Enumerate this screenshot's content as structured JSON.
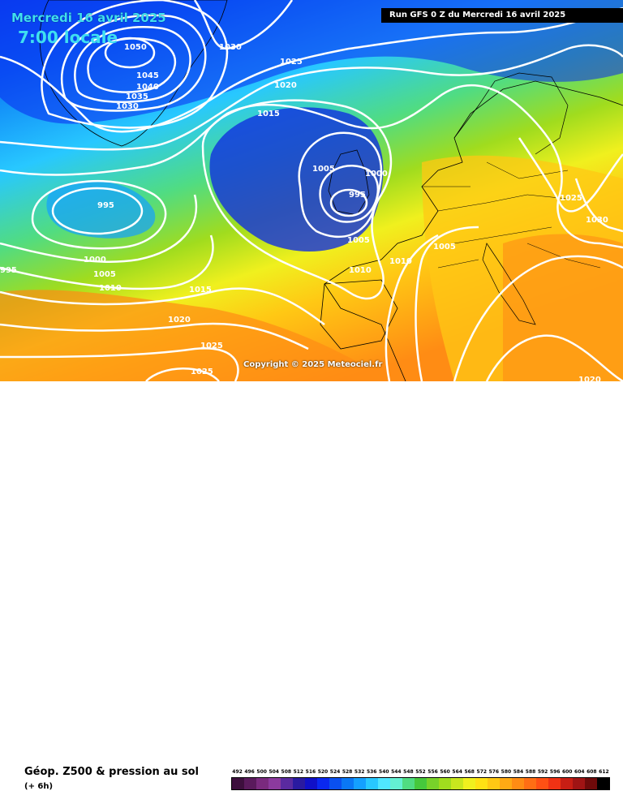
{
  "header": {
    "date_title": "Mercredi 16 avril 2025",
    "time_title": "7:00 locale",
    "run_info": "Run GFS 0 Z du Mercredi 16 avril 2025"
  },
  "copyright": "Copyright © 2025 Meteociel.fr",
  "footer": {
    "product_title": "Géop. Z500 & pression au sol",
    "step": "(+ 6h)"
  },
  "scale": {
    "labels": [
      "492",
      "496",
      "500",
      "504",
      "508",
      "512",
      "516",
      "520",
      "524",
      "528",
      "532",
      "536",
      "540",
      "544",
      "548",
      "552",
      "556",
      "560",
      "564",
      "568",
      "572",
      "576",
      "580",
      "584",
      "588",
      "592",
      "596",
      "600",
      "604",
      "608",
      "612"
    ],
    "colors": [
      "#3d0f3d",
      "#5a1a5c",
      "#7a2a7e",
      "#8c3a9e",
      "#5a2aa0",
      "#2a1aa0",
      "#1010c8",
      "#0a28f0",
      "#0a50f0",
      "#0a78f5",
      "#14a0ff",
      "#28c8ff",
      "#50e6ff",
      "#64f0d2",
      "#50dc82",
      "#46c83c",
      "#78d22a",
      "#a0dc1e",
      "#c8e61e",
      "#f0f01e",
      "#ffe114",
      "#ffc814",
      "#ffaa14",
      "#ff8c14",
      "#ff6e14",
      "#ff5014",
      "#f03214",
      "#c81e14",
      "#a01414",
      "#6e0a0a",
      "#000000"
    ]
  },
  "isobars": [
    "1050",
    "1045",
    "1040",
    "1035",
    "1030",
    "1030",
    "1025",
    "1020",
    "1015",
    "1005",
    "1000",
    "995",
    "995",
    "1005",
    "1010",
    "1010",
    "1005",
    "1000",
    "1005",
    "1010",
    "1015",
    "1020",
    "1025",
    "1025",
    "1025",
    "1030",
    "1020",
    "1020",
    "1025",
    "1030",
    "995"
  ],
  "colors": {
    "deep_blue": "#0a28f0",
    "mid_blue": "#0a78f5",
    "cyan": "#28c8ff",
    "green": "#46c83c",
    "yellow": "#f0f01e",
    "orange": "#ff8c14",
    "contour": "#ffffff"
  }
}
